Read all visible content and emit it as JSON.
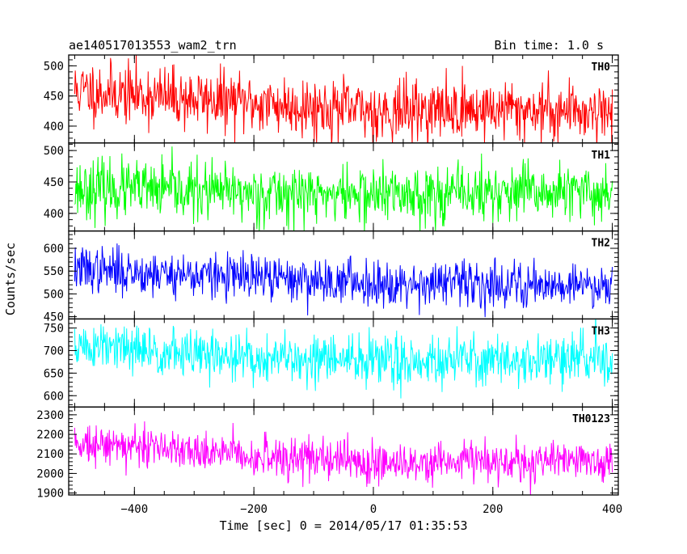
{
  "chart_data": {
    "type": "line",
    "title": "ae140517013553_wam2_trn",
    "bin_time": "Bin time: 1.0 s",
    "xlabel": "Time [sec] 0 = 2014/05/17 01:35:53",
    "ylabel": "Counts/sec",
    "xlim": [
      -510,
      410
    ],
    "x_ticks": [
      -400,
      -200,
      0,
      200,
      400
    ],
    "x_tick_labels": [
      "−400",
      "−200",
      "0",
      "200",
      "400"
    ],
    "x_start": -500,
    "x_end": 400,
    "x_step": 1,
    "series": [
      {
        "name": "TH0",
        "color": "#ff0000",
        "ylim": [
          372,
          518
        ],
        "y_ticks": [
          400,
          450,
          500
        ],
        "y_tick_labels": [
          "400",
          "450",
          "500"
        ],
        "trend": {
          "x": [
            -500,
            -400,
            -200,
            0,
            200,
            400
          ],
          "y": [
            460,
            452,
            438,
            425,
            428,
            425
          ]
        },
        "noise": 25,
        "seed": 11
      },
      {
        "name": "TH1",
        "color": "#00ff00",
        "ylim": [
          372,
          512
        ],
        "y_ticks": [
          400,
          450,
          500
        ],
        "y_tick_labels": [
          "400",
          "450",
          "500"
        ],
        "trend": {
          "x": [
            -500,
            -200,
            0,
            200,
            400
          ],
          "y": [
            440,
            432,
            430,
            432,
            432
          ]
        },
        "noise": 23,
        "seed": 23
      },
      {
        "name": "TH2",
        "color": "#0000ff",
        "ylim": [
          445,
          638
        ],
        "y_ticks": [
          450,
          500,
          550,
          600
        ],
        "y_tick_labels": [
          "450",
          "500",
          "550",
          "600"
        ],
        "trend": {
          "x": [
            -500,
            -400,
            -200,
            0,
            200,
            400
          ],
          "y": [
            555,
            548,
            535,
            525,
            522,
            520
          ]
        },
        "noise": 25,
        "seed": 37
      },
      {
        "name": "TH3",
        "color": "#00ffff",
        "ylim": [
          575,
          770
        ],
        "y_ticks": [
          600,
          650,
          700,
          750
        ],
        "y_tick_labels": [
          "600",
          "650",
          "700",
          "750"
        ],
        "trend": {
          "x": [
            -500,
            -400,
            -200,
            0,
            200,
            400
          ],
          "y": [
            710,
            700,
            682,
            678,
            680,
            680
          ]
        },
        "noise": 28,
        "seed": 51
      },
      {
        "name": "TH0123",
        "color": "#ff00ff",
        "ylim": [
          1890,
          2340
        ],
        "y_ticks": [
          1900,
          2000,
          2100,
          2200,
          2300
        ],
        "y_tick_labels": [
          "1900",
          "2000",
          "2100",
          "2200",
          "2300"
        ],
        "trend": {
          "x": [
            -500,
            -400,
            -200,
            0,
            200,
            400
          ],
          "y": [
            2165,
            2140,
            2090,
            2060,
            2060,
            2065
          ]
        },
        "noise": 52,
        "seed": 73
      }
    ]
  }
}
